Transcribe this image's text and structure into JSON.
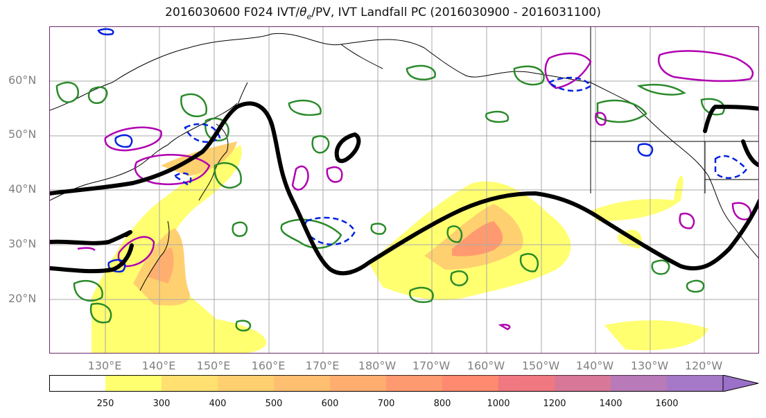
{
  "figure": {
    "title_prefix": "2016030600 F024 IVT/",
    "title_theta": "θ",
    "title_sub": "e",
    "title_suffix": "/PV, IVT Landfall PC (2016030900 - 2016031100)"
  },
  "axes": {
    "lat_labels": [
      "60°N",
      "50°N",
      "40°N",
      "30°N",
      "20°N"
    ],
    "lon_labels": [
      "130°E",
      "140°E",
      "150°E",
      "160°E",
      "170°E",
      "180°W",
      "170°W",
      "160°W",
      "150°W",
      "140°W",
      "130°W",
      "120°W"
    ],
    "grid": true
  },
  "colorbar": {
    "levels": [
      "250",
      "300",
      "400",
      "500",
      "600",
      "700",
      "800",
      "1000",
      "1200",
      "1400",
      "1600"
    ],
    "colors": [
      "#ffffff",
      "#ffff70",
      "#ffe070",
      "#ffd070",
      "#ffbf70",
      "#ffae70",
      "#ff9a70",
      "#ff8a70",
      "#f07880",
      "#d87898",
      "#b87ab8",
      "#a678c8",
      "#9a70c8"
    ],
    "extend": "max"
  },
  "legend_colors": {
    "ivt_fill": "#ffe070",
    "contour_5880": "#000000",
    "theta_e": "#2a8a2a",
    "pv_positive": "#b000b0",
    "pv_negative": "#0020e0"
  }
}
